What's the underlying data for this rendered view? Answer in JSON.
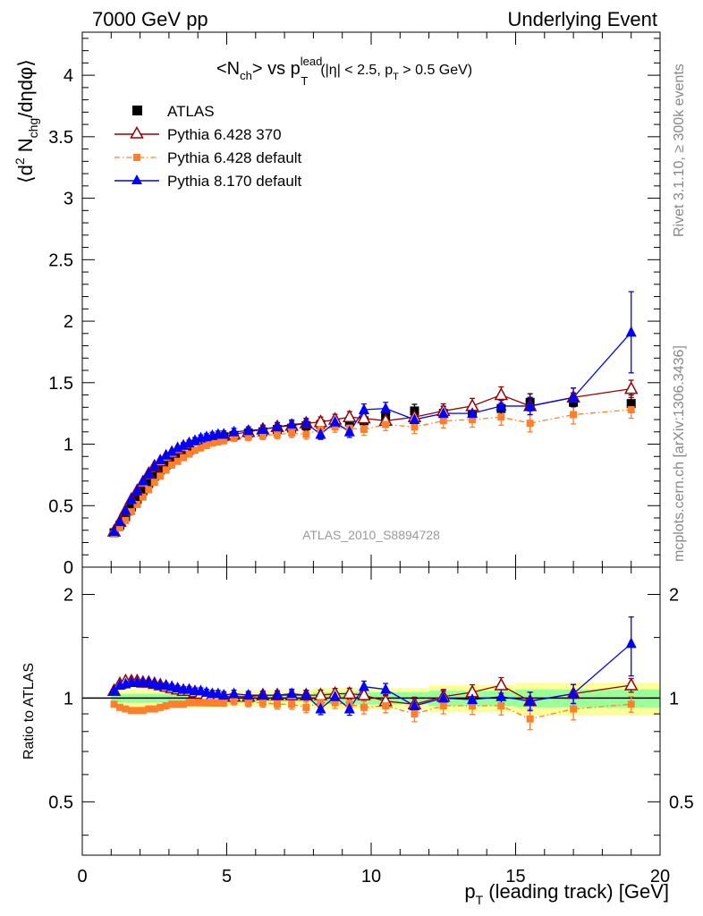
{
  "header": {
    "left": "7000 GeV pp",
    "right": "Underlying Event"
  },
  "side_labels": {
    "rivet": "Rivet 3.1.10, ≥ 300k events",
    "mcplots": "mcplots.cern.ch [arXiv:1306.3436]"
  },
  "chart_data": [
    {
      "type": "scatter",
      "panel": "main",
      "title_parts": {
        "lhs": "<N",
        "lhs_sub": "ch",
        "mid": "> vs p",
        "p_sup": "lead",
        "p_sub": "T",
        "cut_a": "(|η| < 2.5, p",
        "cut_sub": "T",
        "cut_b": " > 0.5 GeV)"
      },
      "ylabel_parts": {
        "a": "⟨d",
        "sup": "2",
        "b": " N",
        "sub": "chg",
        "c": "/dηdφ⟩"
      },
      "analysis_label": "ATLAS_2010_S8894728",
      "xlim": [
        0,
        20
      ],
      "ylim": [
        0,
        4.35
      ],
      "x_ticks": [
        "0",
        "5",
        "10",
        "15",
        "20"
      ],
      "y_ticks": [
        "0",
        "0.5",
        "1",
        "1.5",
        "2",
        "2.5",
        "3",
        "3.5",
        "4"
      ],
      "legend_position": "top-left",
      "x": [
        1.1,
        1.3,
        1.5,
        1.7,
        1.9,
        2.1,
        2.3,
        2.5,
        2.7,
        2.9,
        3.1,
        3.3,
        3.5,
        3.7,
        3.9,
        4.1,
        4.3,
        4.5,
        4.7,
        4.9,
        5.25,
        5.75,
        6.25,
        6.75,
        7.25,
        7.75,
        8.25,
        8.75,
        9.25,
        9.75,
        10.5,
        11.5,
        12.5,
        13.5,
        14.5,
        15.5,
        17.0,
        19.0
      ],
      "series": [
        {
          "name": "ATLAS",
          "color": "#000000",
          "marker": "filled-square",
          "line": "none",
          "values": [
            0.28,
            0.34,
            0.41,
            0.49,
            0.55,
            0.62,
            0.68,
            0.74,
            0.79,
            0.83,
            0.87,
            0.9,
            0.93,
            0.95,
            0.98,
            1.0,
            1.02,
            1.04,
            1.05,
            1.06,
            1.07,
            1.09,
            1.1,
            1.12,
            1.13,
            1.15,
            1.16,
            1.17,
            1.18,
            1.19,
            1.22,
            1.27,
            1.25,
            1.26,
            1.29,
            1.34,
            1.34,
            1.33
          ]
        },
        {
          "name": "Pythia 6.428 370",
          "color": "#990000",
          "marker": "open-triangle",
          "line": "solid",
          "values": [
            0.29,
            0.37,
            0.46,
            0.55,
            0.62,
            0.69,
            0.76,
            0.82,
            0.86,
            0.9,
            0.93,
            0.96,
            0.98,
            1.0,
            1.01,
            1.03,
            1.04,
            1.05,
            1.06,
            1.07,
            1.08,
            1.1,
            1.12,
            1.14,
            1.15,
            1.17,
            1.18,
            1.2,
            1.22,
            1.21,
            1.19,
            1.22,
            1.27,
            1.31,
            1.4,
            1.31,
            1.38,
            1.45
          ]
        },
        {
          "name": "Pythia 6.428 default",
          "color": "#ff7f2a",
          "marker": "filled-square",
          "line": "dash-dot",
          "values": [
            0.27,
            0.32,
            0.38,
            0.45,
            0.51,
            0.57,
            0.63,
            0.69,
            0.74,
            0.79,
            0.83,
            0.86,
            0.89,
            0.92,
            0.95,
            0.97,
            0.99,
            1.01,
            1.02,
            1.03,
            1.05,
            1.06,
            1.07,
            1.08,
            1.09,
            1.08,
            1.12,
            1.14,
            1.13,
            1.12,
            1.16,
            1.14,
            1.19,
            1.2,
            1.22,
            1.17,
            1.24,
            1.28
          ]
        },
        {
          "name": "Pythia 8.170 default",
          "color": "#0000ff",
          "marker": "filled-triangle",
          "line": "solid",
          "values": [
            0.29,
            0.37,
            0.46,
            0.55,
            0.62,
            0.7,
            0.76,
            0.82,
            0.87,
            0.91,
            0.94,
            0.97,
            0.99,
            1.01,
            1.03,
            1.05,
            1.06,
            1.07,
            1.08,
            1.08,
            1.1,
            1.11,
            1.12,
            1.14,
            1.16,
            1.17,
            1.08,
            1.18,
            1.1,
            1.28,
            1.29,
            1.2,
            1.25,
            1.25,
            1.31,
            1.31,
            1.38,
            1.91
          ]
        }
      ]
    },
    {
      "type": "scatter",
      "panel": "ratio",
      "ylabel": "Ratio to ATLAS",
      "xlabel_parts": {
        "a": "p",
        "sub": "T",
        "b": " (leading track) [GeV]"
      },
      "xlim": [
        0,
        20
      ],
      "ylim": [
        0.35,
        2.4
      ],
      "log_y": true,
      "x_ticks": [
        "0",
        "5",
        "10",
        "15",
        "20"
      ],
      "y_ticks": [
        "0.5",
        "1",
        "2"
      ],
      "x": [
        1.1,
        1.3,
        1.5,
        1.7,
        1.9,
        2.1,
        2.3,
        2.5,
        2.7,
        2.9,
        3.1,
        3.3,
        3.5,
        3.7,
        3.9,
        4.1,
        4.3,
        4.5,
        4.7,
        4.9,
        5.25,
        5.75,
        6.25,
        6.75,
        7.25,
        7.75,
        8.25,
        8.75,
        9.25,
        9.75,
        10.5,
        11.5,
        12.5,
        13.5,
        14.5,
        15.5,
        17.0,
        19.0
      ],
      "series": [
        {
          "name": "Pythia 6.428 370",
          "color": "#990000",
          "values": [
            1.05,
            1.1,
            1.12,
            1.12,
            1.12,
            1.11,
            1.11,
            1.1,
            1.09,
            1.08,
            1.07,
            1.06,
            1.05,
            1.05,
            1.04,
            1.03,
            1.02,
            1.02,
            1.01,
            1.01,
            1.01,
            1.01,
            1.02,
            1.02,
            1.02,
            1.02,
            1.02,
            1.03,
            1.03,
            1.02,
            0.98,
            0.96,
            1.01,
            1.04,
            1.09,
            0.98,
            1.03,
            1.09
          ]
        },
        {
          "name": "Pythia 6.428 default",
          "color": "#ff7f2a",
          "values": [
            0.96,
            0.94,
            0.93,
            0.92,
            0.92,
            0.92,
            0.93,
            0.93,
            0.94,
            0.95,
            0.96,
            0.96,
            0.96,
            0.97,
            0.97,
            0.97,
            0.97,
            0.97,
            0.97,
            0.97,
            0.98,
            0.97,
            0.97,
            0.96,
            0.96,
            0.94,
            0.97,
            0.97,
            0.96,
            0.94,
            0.95,
            0.9,
            0.95,
            0.95,
            0.95,
            0.87,
            0.93,
            0.96
          ]
        },
        {
          "name": "Pythia 8.170 default",
          "color": "#0000ff",
          "values": [
            1.05,
            1.09,
            1.1,
            1.11,
            1.11,
            1.11,
            1.11,
            1.1,
            1.09,
            1.09,
            1.08,
            1.07,
            1.06,
            1.06,
            1.05,
            1.05,
            1.04,
            1.03,
            1.03,
            1.02,
            1.03,
            1.02,
            1.02,
            1.02,
            1.03,
            1.02,
            0.93,
            1.01,
            0.93,
            1.08,
            1.06,
            0.95,
            1.0,
            0.99,
            1.01,
            0.98,
            1.03,
            1.44
          ]
        }
      ],
      "bands": {
        "outer_color": "#ffff99",
        "inner_color": "#99ff99",
        "x_edges": [
          1.0,
          5.0,
          8.0,
          12.0,
          15.0,
          20.0
        ],
        "outer_half_width": [
          0.06,
          0.05,
          0.07,
          0.09,
          0.11
        ],
        "inner_half_width": [
          0.03,
          0.025,
          0.04,
          0.05,
          0.06
        ]
      }
    }
  ]
}
